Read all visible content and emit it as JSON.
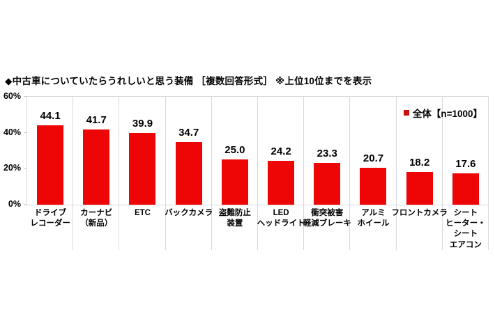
{
  "title": "◆中古車についていたらうれしいと思う装備 ［複数回答形式］ ※上位10位までを表示",
  "legend": {
    "label": "全体【n=1000】",
    "marker_color": "#cc0f0f"
  },
  "colors": {
    "bar": "#ee0606",
    "gridline": "#d9d9d9",
    "text": "#000000",
    "background": "#ffffff"
  },
  "chart_data": {
    "type": "bar",
    "title": "中古車についていたらうれしいと思う装備 ［複数回答形式］ ※上位10位までを表示",
    "series_name": "全体【n=1000】",
    "categories": [
      "ドライブ\nレコーダー",
      "カーナビ\n（新品）",
      "ETC",
      "バックカメラ",
      "盗難防止\n装置",
      "LED\nヘッドライト",
      "衝突被害\n軽減ブレーキ",
      "アルミ\nホイール",
      "フロントカメラ",
      "シート\nヒーター・\nシート\nエアコン"
    ],
    "values": [
      44.1,
      41.7,
      39.9,
      34.7,
      25.0,
      24.2,
      23.3,
      20.7,
      18.2,
      17.6
    ],
    "value_decimals": 1,
    "xlabel": "",
    "ylabel": "",
    "ylim": [
      0,
      60
    ],
    "yticks_top_to_bottom": [
      "60%",
      "40%",
      "20%",
      "0%"
    ],
    "grid": "vertical category separators, horizontal baseline only",
    "legend_position": "top-right"
  }
}
